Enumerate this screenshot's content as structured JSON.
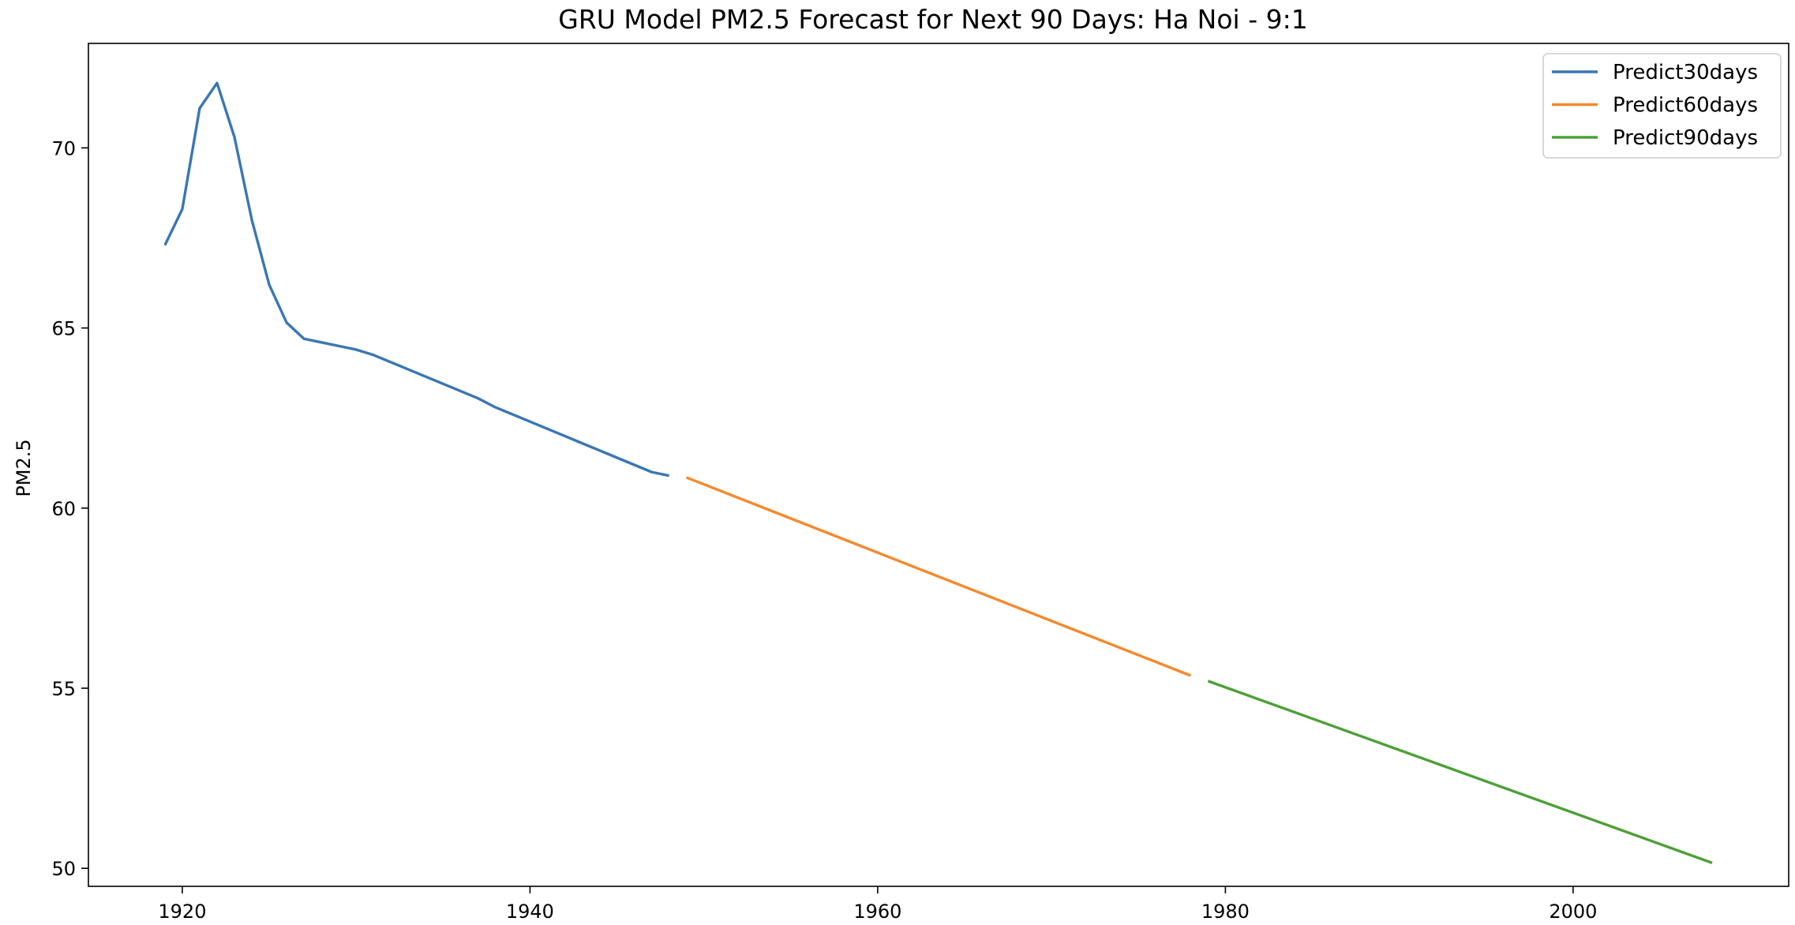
{
  "chart_data": {
    "type": "line",
    "title": "GRU Model PM2.5 Forecast for Next 90 Days: Ha Noi - 9:1",
    "xlabel": "",
    "ylabel": "PM2.5",
    "xlim": [
      1914.6,
      2012.4
    ],
    "ylim": [
      49.5,
      72.9
    ],
    "xticks": [
      1920,
      1940,
      1960,
      1980,
      2000
    ],
    "yticks": [
      50,
      55,
      60,
      65,
      70
    ],
    "grid": false,
    "legend_position": "top-right",
    "series": [
      {
        "name": "Predict30days",
        "color": "#3a77b3",
        "x": [
          1919,
          1920,
          1921,
          1922,
          1923,
          1924,
          1925,
          1926,
          1927,
          1928,
          1929,
          1930,
          1931,
          1932,
          1933,
          1934,
          1935,
          1936,
          1937,
          1938,
          1939,
          1940,
          1941,
          1942,
          1943,
          1944,
          1945,
          1946,
          1947,
          1948
        ],
        "y": [
          67.3,
          68.3,
          71.1,
          71.8,
          70.3,
          68.0,
          66.2,
          65.15,
          64.7,
          64.6,
          64.5,
          64.4,
          64.25,
          64.05,
          63.85,
          63.65,
          63.45,
          63.25,
          63.05,
          62.8,
          62.6,
          62.4,
          62.2,
          62.0,
          61.8,
          61.6,
          61.4,
          61.2,
          61.0,
          60.9
        ]
      },
      {
        "name": "Predict60days",
        "color": "#f5892e",
        "x": [
          1949,
          1978
        ],
        "y": [
          60.85,
          55.35
        ]
      },
      {
        "name": "Predict90days",
        "color": "#4da037",
        "x": [
          1979,
          2008
        ],
        "y": [
          55.2,
          50.15
        ]
      }
    ]
  }
}
